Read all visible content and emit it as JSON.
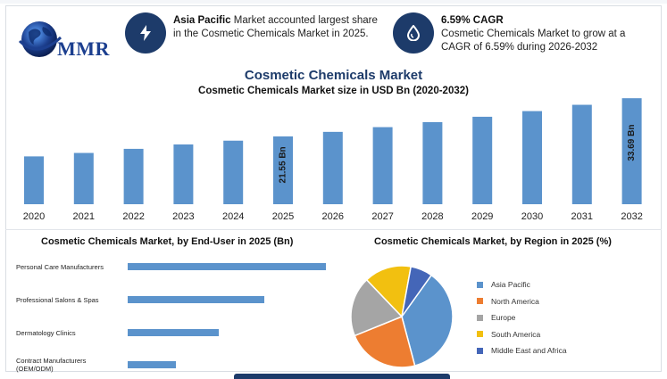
{
  "header": {
    "logo_text": "MMR",
    "card1": {
      "bold": "Asia Pacific",
      "text": " Market accounted largest share in the Cosmetic Chemicals Market in 2025.",
      "icon": "lightning-icon"
    },
    "card2": {
      "bold": "6.59% CAGR",
      "text": "Cosmetic Chemicals Market to grow at a CAGR of 6.59% during 2026-2032",
      "icon": "water-drop-icon"
    }
  },
  "colors": {
    "navy": "#1d3b6a",
    "bar": "#5b93cc"
  },
  "chart_data": [
    {
      "type": "bar",
      "title": "Cosmetic Chemicals Market",
      "subtitle": "Cosmetic Chemicals Market size in USD Bn (2020-2032)",
      "categories": [
        "2020",
        "2021",
        "2022",
        "2023",
        "2024",
        "2025",
        "2026",
        "2027",
        "2028",
        "2029",
        "2030",
        "2031",
        "2032"
      ],
      "values": [
        15.2,
        16.3,
        17.6,
        19.0,
        20.2,
        21.55,
        23.0,
        24.5,
        26.1,
        27.8,
        29.6,
        31.6,
        33.69
      ],
      "data_labels": [
        {
          "index": 5,
          "text": "21.55 Bn"
        },
        {
          "index": 12,
          "text": "33.69 Bn"
        }
      ],
      "ylim": [
        0,
        36
      ],
      "grid": false
    },
    {
      "type": "bar",
      "orientation": "horizontal",
      "title": "Cosmetic Chemicals Market, by End-User in 2025 (Bn)",
      "categories": [
        "Personal Care Manufacturers",
        "Professional Salons & Spas",
        "Dermatology Clinics",
        "Contract Manufacturers (OEM/ODM)"
      ],
      "values": [
        8.7,
        6.0,
        4.0,
        2.1
      ]
    },
    {
      "type": "pie",
      "title": "Cosmetic Chemicals Market, by Region in 2025 (%)",
      "labels": [
        "Asia Pacific",
        "North America",
        "Europe",
        "South America",
        "Middle East and Africa"
      ],
      "values": [
        36,
        23,
        19,
        15,
        7
      ],
      "colors": [
        "#5b93cc",
        "#ed7d31",
        "#a5a5a5",
        "#f2c010",
        "#4466b8"
      ],
      "legend": "right"
    }
  ]
}
